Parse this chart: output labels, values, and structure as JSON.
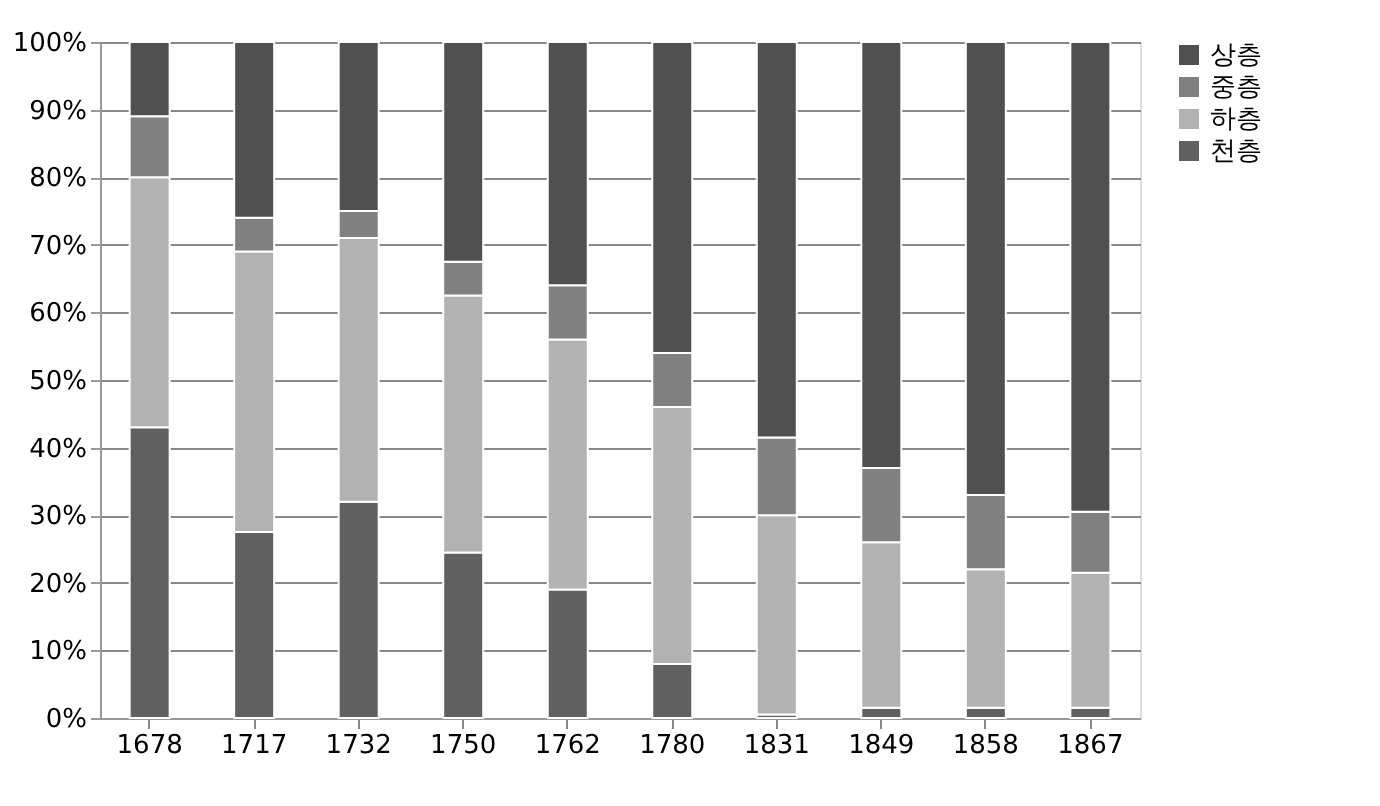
{
  "chart_data": {
    "type": "bar",
    "stacked": true,
    "categories": [
      "1678",
      "1717",
      "1732",
      "1750",
      "1762",
      "1780",
      "1831",
      "1849",
      "1858",
      "1867"
    ],
    "series": [
      {
        "name": "천층",
        "color": "#606060",
        "values": [
          43,
          27.5,
          32,
          24.5,
          19,
          8,
          0.5,
          1.5,
          1.5,
          1.5
        ]
      },
      {
        "name": "하층",
        "color": "#b2b2b2",
        "values": [
          37,
          41.5,
          39,
          38,
          37,
          38,
          29.5,
          24.5,
          20.5,
          20
        ]
      },
      {
        "name": "중층",
        "color": "#808080",
        "values": [
          9,
          5,
          4,
          5,
          8,
          8,
          11.5,
          11,
          11,
          9
        ]
      },
      {
        "name": "상층",
        "color": "#505050",
        "values": [
          11,
          26,
          25,
          32.5,
          36,
          46,
          58.5,
          63,
          67,
          69.5
        ]
      }
    ],
    "ylim": [
      0,
      100
    ],
    "yticks": [
      {
        "value": 0,
        "label": "0%"
      },
      {
        "value": 10,
        "label": "10%"
      },
      {
        "value": 20,
        "label": "20%"
      },
      {
        "value": 30,
        "label": "30%"
      },
      {
        "value": 40,
        "label": "40%"
      },
      {
        "value": 50,
        "label": "50%"
      },
      {
        "value": 60,
        "label": "60%"
      },
      {
        "value": 70,
        "label": "70%"
      },
      {
        "value": 80,
        "label": "80%"
      },
      {
        "value": 90,
        "label": "90%"
      },
      {
        "value": 100,
        "label": "100%"
      }
    ],
    "grid": "y",
    "legend": "right"
  }
}
